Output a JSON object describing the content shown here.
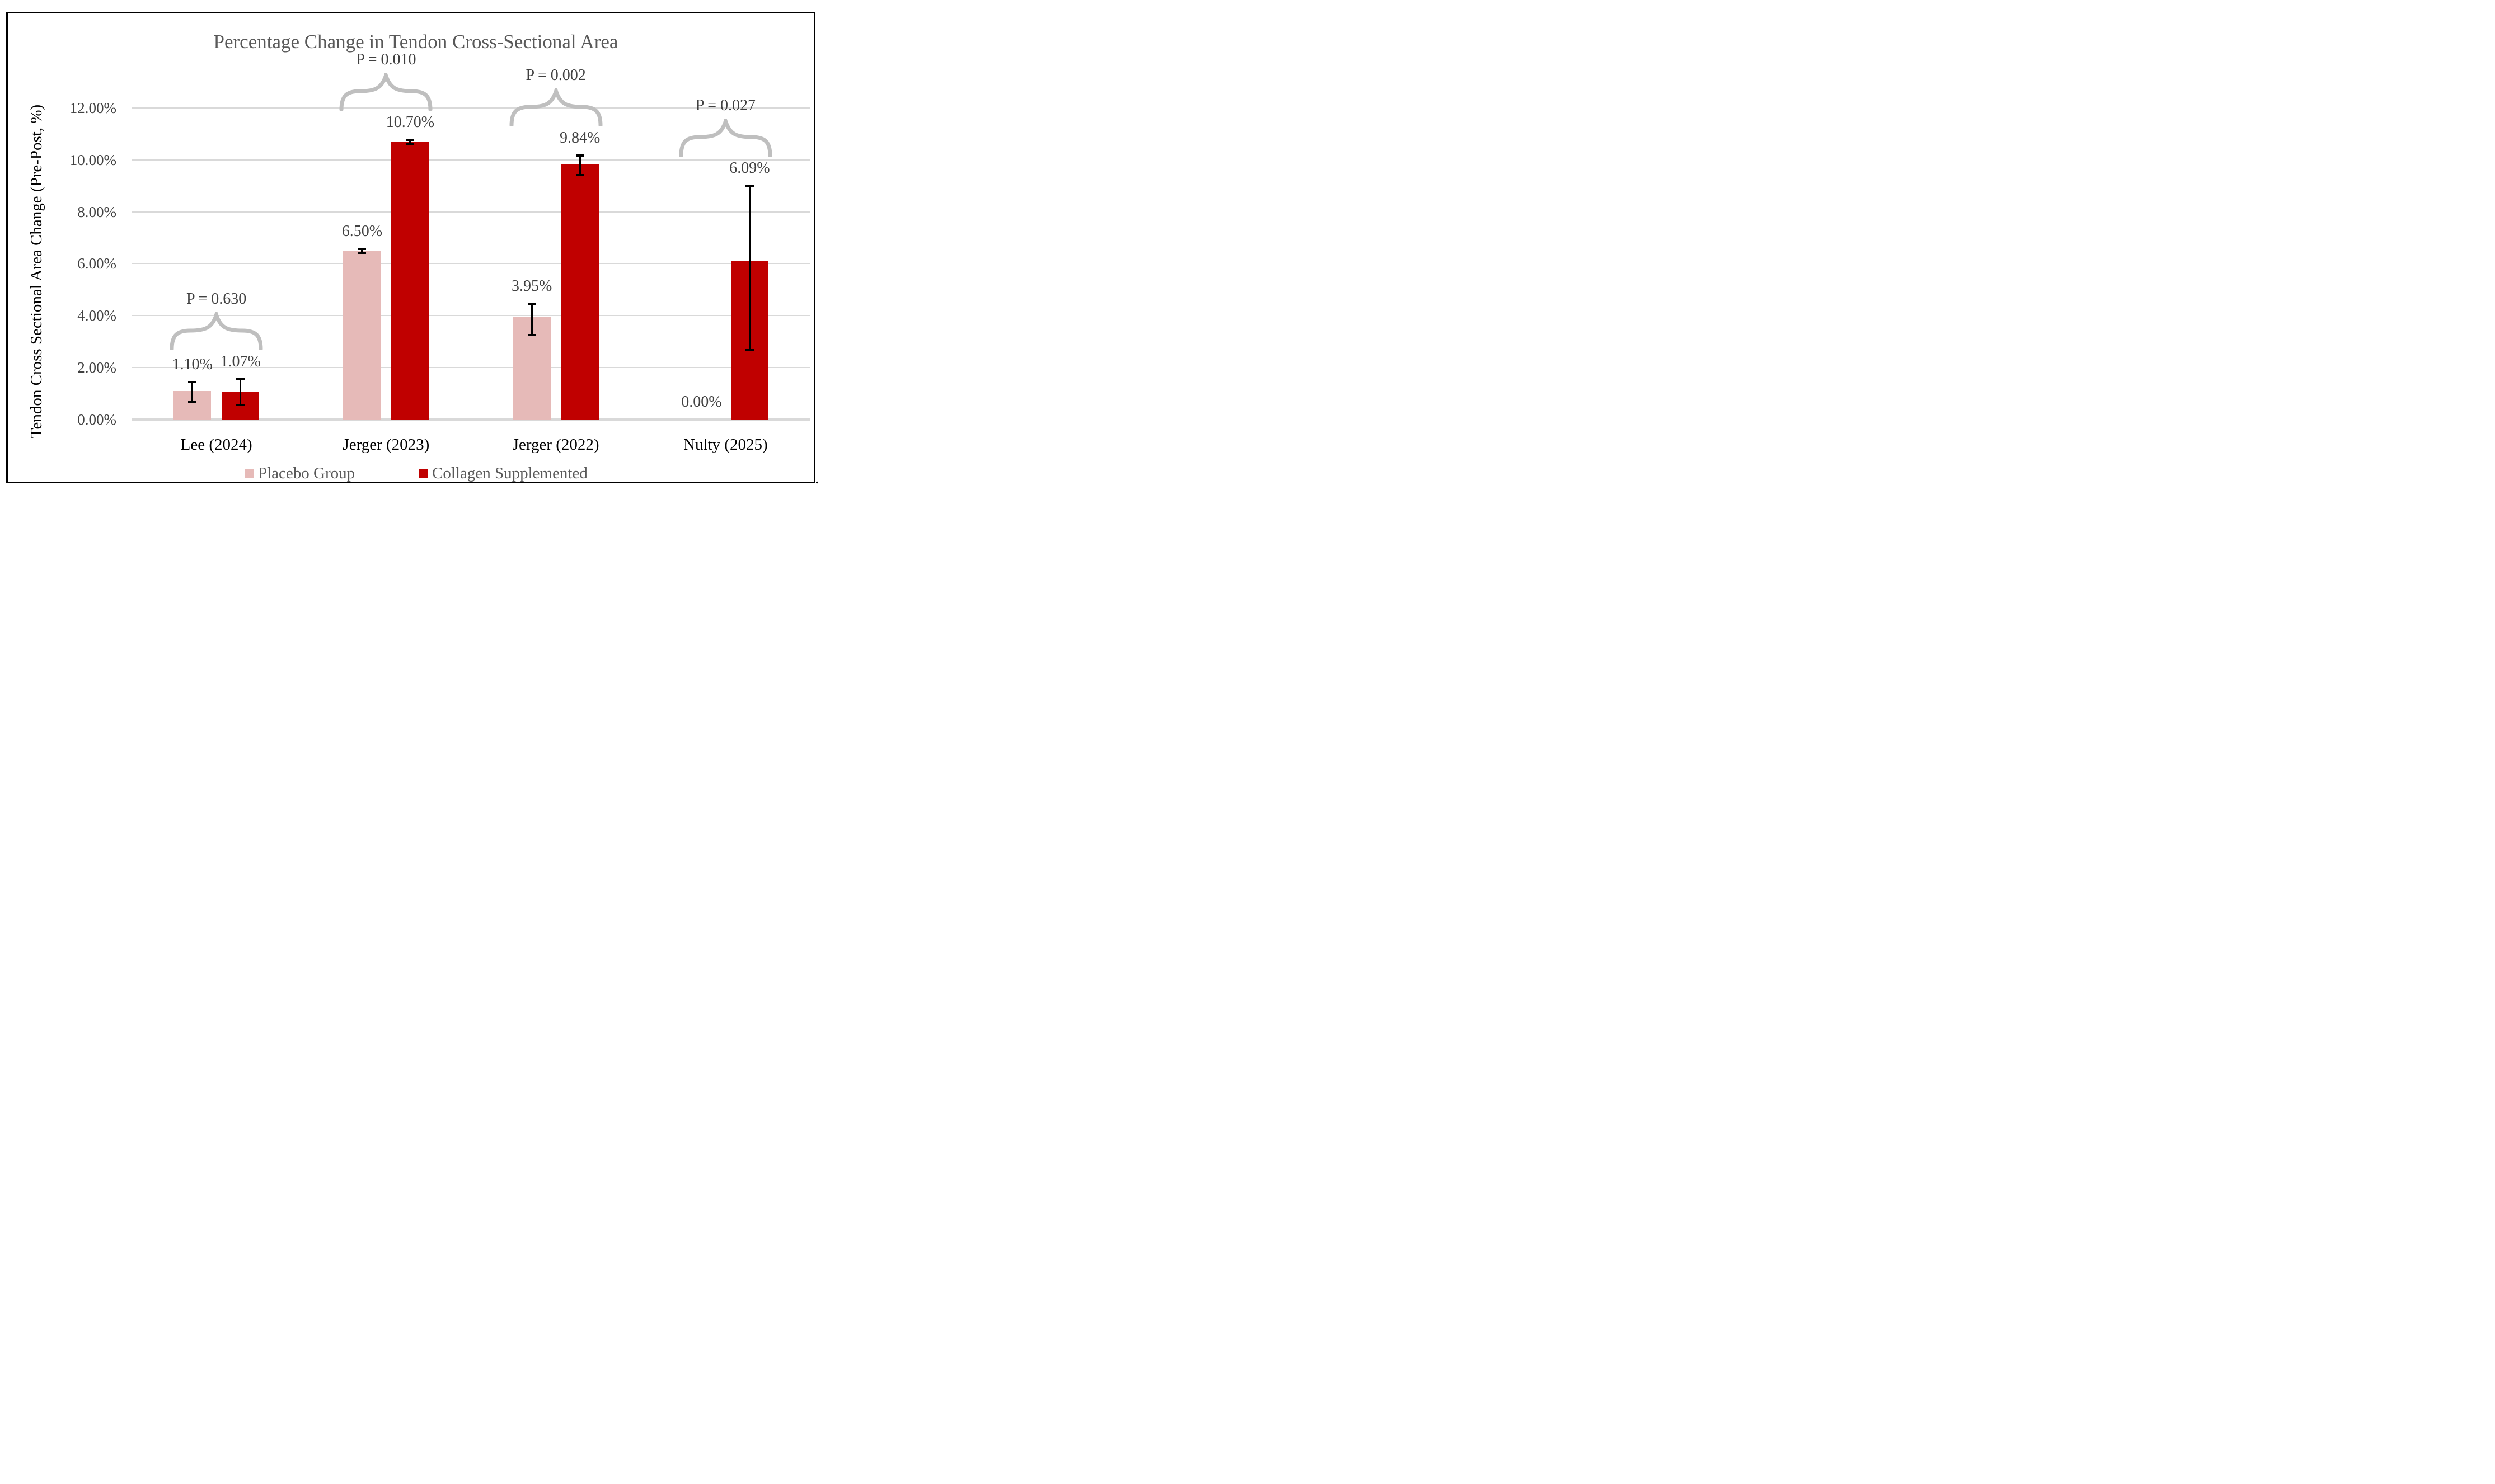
{
  "title": "Percentage Change in Tendon Cross-Sectional Area",
  "y_axis": {
    "title": "Tendon Cross Sectional Area Change (Pre-Post, %)",
    "ticks": [
      "0.00%",
      "2.00%",
      "4.00%",
      "6.00%",
      "8.00%",
      "10.00%",
      "12.00%"
    ],
    "min": 0,
    "max": 12,
    "step": 2
  },
  "legend": [
    {
      "label": "Placebo Group",
      "color": "#E6BAB8"
    },
    {
      "label": "Collagen Supplemented",
      "color": "#C00000"
    }
  ],
  "colors": {
    "placebo": "#E6BAB8",
    "collagen": "#C00000",
    "gridline": "#D9D9D9",
    "brace": "#BFBFBF",
    "title_text": "#595959",
    "label_text": "#404040",
    "category_text": "#000000",
    "error_bar": "#000000"
  },
  "frame": {
    "period": "."
  },
  "chart_data": {
    "type": "bar",
    "title": "Percentage Change in Tendon Cross-Sectional Area",
    "xlabel": "",
    "ylabel": "Tendon Cross Sectional Area Change (Pre-Post, %)",
    "ylim": [
      0,
      12
    ],
    "ytick_format": "percent",
    "grid": true,
    "legend_position": "bottom",
    "categories": [
      "Lee (2024)",
      "Jerger (2023)",
      "Jerger (2022)",
      "Nulty (2025)"
    ],
    "series": [
      {
        "name": "Placebo Group",
        "color": "#E6BAB8",
        "values": [
          1.1,
          6.5,
          3.95,
          0.0
        ],
        "labels": [
          "1.10%",
          "6.50%",
          "3.95%",
          "0.00%"
        ],
        "error_plus": [
          0.35,
          0.07,
          0.5,
          0
        ],
        "error_minus": [
          0.4,
          0.07,
          0.7,
          0
        ]
      },
      {
        "name": "Collagen Supplemented",
        "color": "#C00000",
        "values": [
          1.07,
          10.7,
          9.84,
          6.09
        ],
        "labels": [
          "1.07%",
          "10.70%",
          "9.84%",
          "6.09%"
        ],
        "error_plus": [
          0.48,
          0.07,
          0.33,
          2.91
        ],
        "error_minus": [
          0.52,
          0.07,
          0.42,
          3.42
        ]
      }
    ],
    "p_values": [
      "P = 0.630",
      "P = 0.010",
      "P = 0.002",
      "P = 0.027"
    ]
  }
}
